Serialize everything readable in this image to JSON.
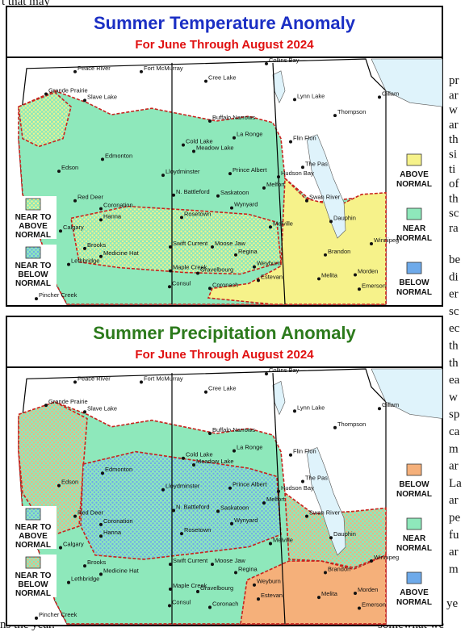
{
  "margin_text": {
    "top_left": "t that may",
    "bottom_left": "ns the year.",
    "bottom_right": "somewhat we",
    "right_last": "ye",
    "right_column_1": [
      "pr",
      "ar",
      "w",
      "ar",
      "th",
      "si",
      "ti",
      "of",
      "th",
      "sc",
      "ra"
    ],
    "right_column_2": [
      "be",
      "di",
      "er",
      "sc",
      "ec",
      "th",
      "th",
      "ea",
      "w",
      "sp",
      "ca",
      "m",
      "ar",
      "La",
      "ar",
      "pe",
      "fu",
      "ar",
      "m"
    ]
  },
  "maps": [
    {
      "title": "Summer Temperature Anomaly",
      "title_color": "#1b2fc4",
      "subtitle": "For June Through August 2024",
      "legend": [
        {
          "lines": [
            "ABOVE",
            "NORMAL"
          ],
          "color": "#f6f28a"
        },
        {
          "lines": [
            "NEAR",
            "NORMAL"
          ],
          "color": "#8ee8bb"
        },
        {
          "lines": [
            "BELOW",
            "NORMAL"
          ],
          "color": "#6eaaea"
        }
      ],
      "inset_legend": [
        {
          "lines": [
            "NEAR TO",
            "ABOVE",
            "NORMAL"
          ],
          "color": "#8ee8bb",
          "dot_color": "#f6f28a"
        },
        {
          "lines": [
            "NEAR TO",
            "BELOW",
            "NORMAL"
          ],
          "color": "#8ee8bb",
          "dot_color": "#6eaaea"
        }
      ]
    },
    {
      "title": "Summer Precipitation Anomaly",
      "title_color": "#2c7a1c",
      "subtitle": "For June Through August 2024",
      "legend": [
        {
          "lines": [
            "BELOW",
            "NORMAL"
          ],
          "color": "#f5b07a"
        },
        {
          "lines": [
            "NEAR",
            "NORMAL"
          ],
          "color": "#8ee8bb"
        },
        {
          "lines": [
            "ABOVE",
            "NORMAL"
          ],
          "color": "#6eaaea"
        }
      ],
      "inset_legend": [
        {
          "lines": [
            "NEAR TO",
            "ABOVE",
            "NORMAL"
          ],
          "color": "#8ee8bb",
          "dot_color": "#6eaaea"
        },
        {
          "lines": [
            "NEAR TO",
            "BELOW",
            "NORMAL"
          ],
          "color": "#8ee8bb",
          "dot_color": "#f5b07a"
        }
      ]
    }
  ],
  "cities": [
    "Peace River",
    "Fort McMurray",
    "Cree Lake",
    "Collins Bay",
    "Lynn Lake",
    "Gillam",
    "Grande Prairie",
    "Slave Lake",
    "Buffalo Narrows",
    "Thompson",
    "La Ronge",
    "Flin Flon",
    "Cold Lake",
    "Meadow Lake",
    "Edmonton",
    "Lloydminster",
    "Edson",
    "Prince Albert",
    "The Pas",
    "Hudson Bay",
    "Melfort",
    "N. Battleford",
    "Saskatoon",
    "Red Deer",
    "Coronation",
    "Hanna",
    "Wynyard",
    "Rosetown",
    "Swan River",
    "Dauphin",
    "Calgary",
    "Melville",
    "Brooks",
    "Medicine Hat",
    "Swift Current",
    "Moose Jaw",
    "Regina",
    "Lethbridge",
    "Brandon",
    "Winnipeg",
    "Maple Creek",
    "Gravelbourg",
    "Weyburn",
    "Estevan",
    "Melita",
    "Morden",
    "Emerson",
    "Pincher Creek",
    "Consul",
    "Coronach"
  ]
}
